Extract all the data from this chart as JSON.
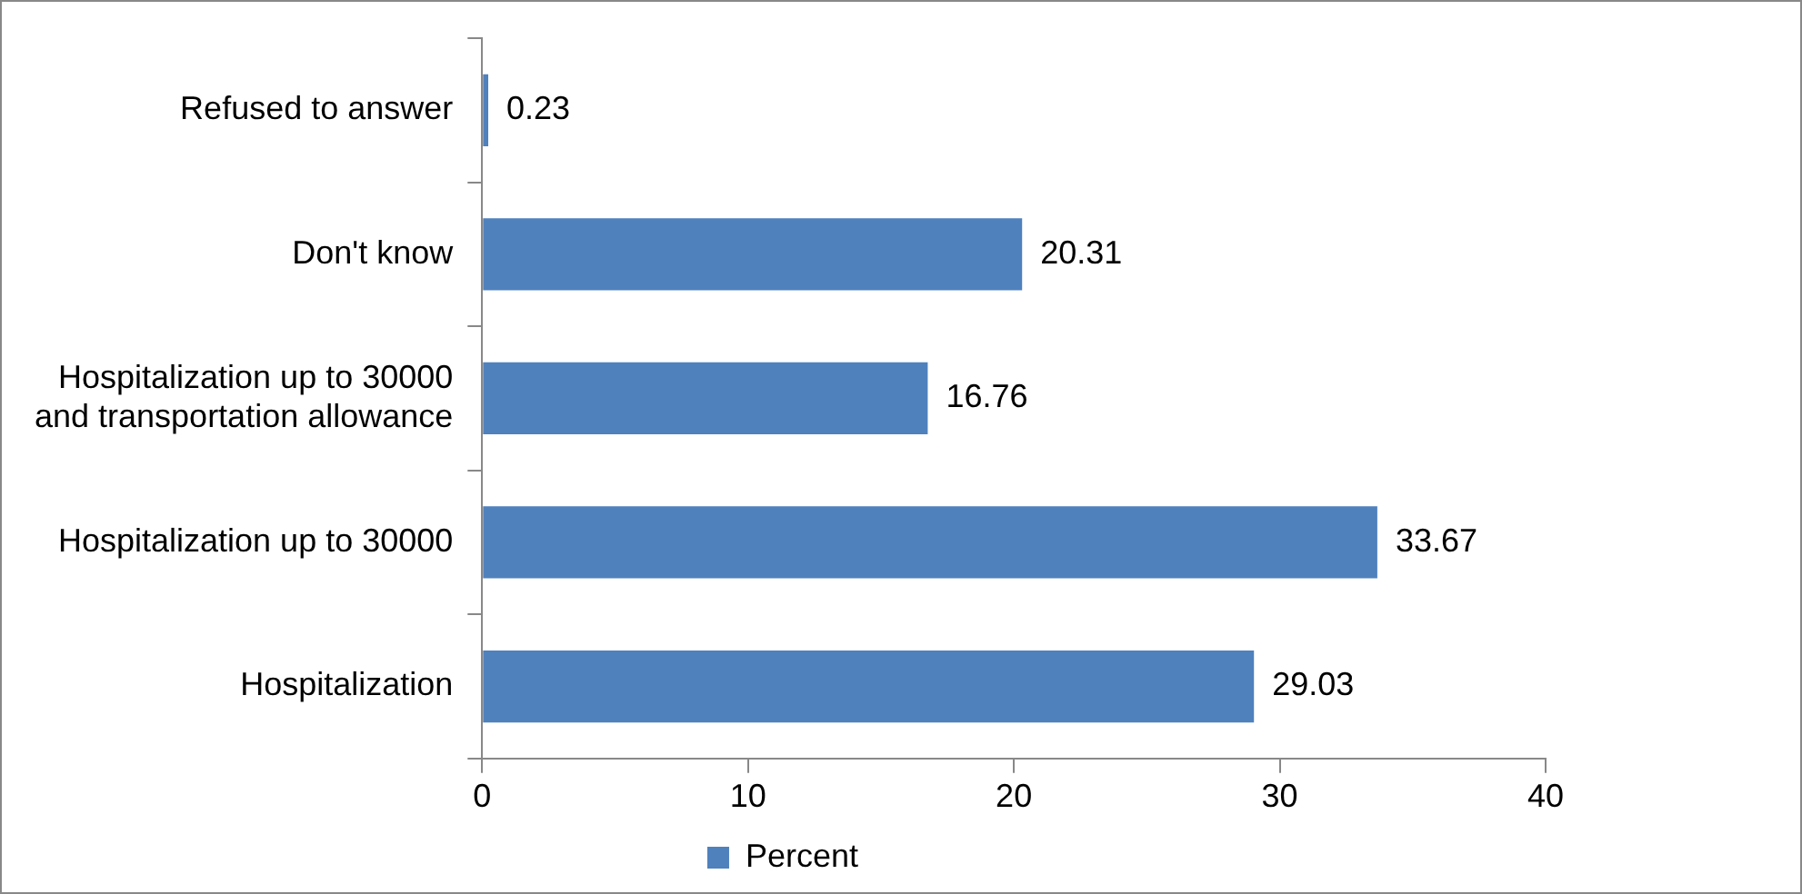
{
  "chart_data": {
    "type": "bar",
    "orientation": "horizontal",
    "categories": [
      "Refused to answer",
      "Don't know",
      "Hospitalization up to 30000 and transportation allowance",
      "Hospitalization up to 30000",
      "Hospitalization"
    ],
    "series": [
      {
        "name": "Percent",
        "color": "#4f81bd",
        "values": [
          0.23,
          20.31,
          16.76,
          33.67,
          29.03
        ]
      }
    ],
    "xlim": [
      0,
      40
    ],
    "xticks": [
      0,
      10,
      20,
      30,
      40
    ],
    "data_labels": true,
    "legend": "bottom"
  }
}
